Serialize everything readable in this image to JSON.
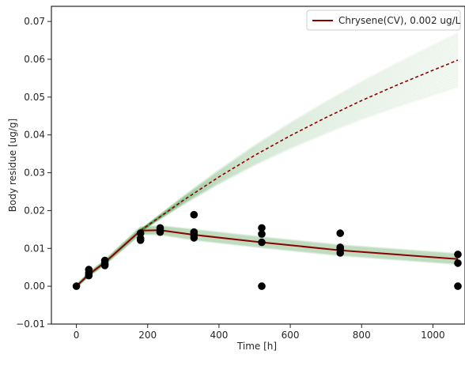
{
  "chart_data": {
    "type": "line",
    "title": "",
    "xlabel": "Time [h]",
    "ylabel": "Body residue [ug/g]",
    "xlim": [
      -70,
      1090
    ],
    "ylim": [
      -0.01,
      0.074
    ],
    "x_ticks": [
      0,
      200,
      400,
      600,
      800,
      1000
    ],
    "y_ticks": [
      -0.01,
      0.0,
      0.01,
      0.02,
      0.03,
      0.04,
      0.05,
      0.06,
      0.07
    ],
    "x_tick_labels": [
      "0",
      "200",
      "400",
      "600",
      "800",
      "1000"
    ],
    "y_tick_labels": [
      "−0.01",
      "0.00",
      "0.01",
      "0.02",
      "0.03",
      "0.04",
      "0.05",
      "0.06",
      "0.07"
    ],
    "grid": false,
    "legend": {
      "position": "top-right",
      "entries": [
        {
          "label": "Chrysene(CV), 0.002 ug/L",
          "color": "#8b0000"
        }
      ]
    },
    "series": [
      {
        "name": "Chrysene(CV), 0.002 ug/L",
        "kind": "line",
        "color": "#8b0000",
        "x": [
          0,
          35,
          80,
          180,
          235,
          330,
          520,
          740,
          1070
        ],
        "y": [
          0.0,
          0.0031,
          0.0063,
          0.0147,
          0.0148,
          0.0136,
          0.0116,
          0.0095,
          0.0072
        ]
      },
      {
        "kind": "dashed-line",
        "color": "#8b0000",
        "x": [
          180,
          300,
          400,
          500,
          600,
          700,
          800,
          900,
          1000,
          1070
        ],
        "y": [
          0.0147,
          0.0227,
          0.0289,
          0.0346,
          0.0398,
          0.0446,
          0.0491,
          0.0532,
          0.0571,
          0.0598
        ]
      },
      {
        "kind": "observations",
        "color": "#000000",
        "x": [
          0,
          35,
          35,
          35,
          80,
          80,
          80,
          180,
          180,
          180,
          235,
          235,
          235,
          330,
          330,
          330,
          330,
          520,
          520,
          520,
          520,
          740,
          740,
          740,
          740,
          1070,
          1070,
          1070
        ],
        "y": [
          0.0,
          0.0028,
          0.0035,
          0.0044,
          0.0055,
          0.006,
          0.0068,
          0.0122,
          0.0126,
          0.014,
          0.0143,
          0.0148,
          0.0154,
          0.0128,
          0.0136,
          0.0143,
          0.0189,
          0.0,
          0.0116,
          0.0138,
          0.0154,
          0.0088,
          0.0098,
          0.0103,
          0.014,
          0.0,
          0.0061,
          0.0084
        ]
      }
    ],
    "uncertainty_band_color": "#2e8b2e"
  }
}
